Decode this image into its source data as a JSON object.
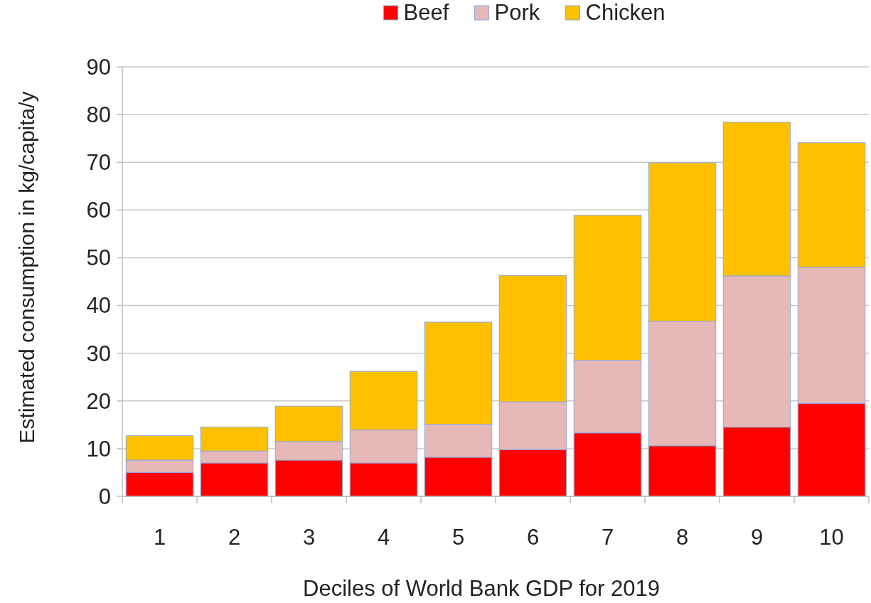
{
  "chart_data": {
    "type": "bar",
    "stacked": true,
    "xlabel": "Deciles of World Bank GDP for 2019",
    "ylabel": "Estimated consumption in kg/capita/y",
    "categories": [
      "1",
      "2",
      "3",
      "4",
      "5",
      "6",
      "7",
      "8",
      "9",
      "10"
    ],
    "series": [
      {
        "name": "Beef",
        "color": "#ff0000",
        "values": [
          5.0,
          7.0,
          7.6,
          7.0,
          8.2,
          9.8,
          13.3,
          10.6,
          14.5,
          19.5
        ]
      },
      {
        "name": "Pork",
        "color": "#e6b9b8",
        "values": [
          2.6,
          2.5,
          3.9,
          6.9,
          6.9,
          10.0,
          15.2,
          26.1,
          31.7,
          28.5
        ]
      },
      {
        "name": "Chicken",
        "color": "#ffc000",
        "values": [
          5.1,
          5.0,
          7.4,
          12.3,
          21.4,
          26.5,
          30.4,
          33.2,
          32.2,
          26.1
        ]
      }
    ],
    "ylim": [
      0,
      90
    ],
    "yticks": [
      0,
      10,
      20,
      30,
      40,
      50,
      60,
      70,
      80,
      90
    ],
    "grid": "y",
    "legend": "top"
  }
}
